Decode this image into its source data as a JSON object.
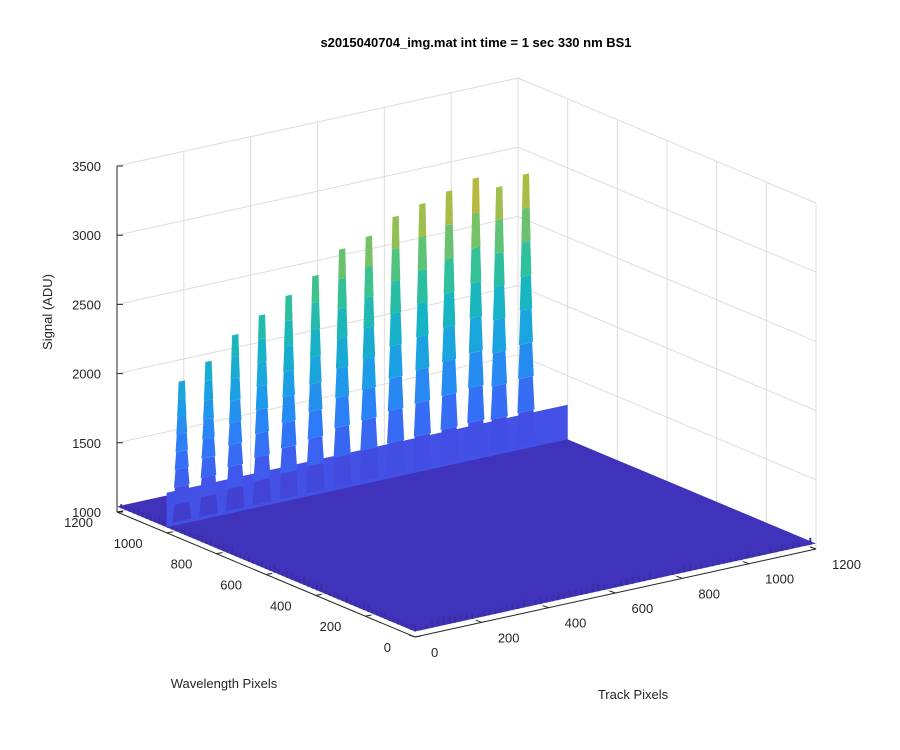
{
  "chart_data": {
    "type": "surface",
    "title": "s2015040704_img.mat int time = 1 sec  330 nm BS1",
    "xlabel": "Track Pixels",
    "ylabel": "Wavelength Pixels",
    "zlabel": "Signal (ADU)",
    "xlim": [
      0,
      1200
    ],
    "ylim": [
      0,
      1200
    ],
    "zlim": [
      1000,
      3500
    ],
    "x_ticks": [
      "0",
      "200",
      "400",
      "600",
      "800",
      "1000",
      "1200"
    ],
    "y_ticks": [
      "0",
      "200",
      "400",
      "600",
      "800",
      "1000",
      "1200"
    ],
    "z_ticks": [
      "1000",
      "1500",
      "2000",
      "2500",
      "3000",
      "3500"
    ],
    "grid": true,
    "colormap": "parula",
    "colormap_stops": [
      "#3e26a8",
      "#4353ea",
      "#2f7af9",
      "#1c9ee7",
      "#17b4c4",
      "#35c293",
      "#8cc158",
      "#d9b52a",
      "#f9d524"
    ],
    "background_level": 1040,
    "peaks": [
      {
        "x": 60,
        "y": 1080,
        "z": 2050
      },
      {
        "x": 140,
        "y": 1080,
        "z": 2150
      },
      {
        "x": 220,
        "y": 1080,
        "z": 2300
      },
      {
        "x": 300,
        "y": 1080,
        "z": 2400
      },
      {
        "x": 380,
        "y": 1080,
        "z": 2500
      },
      {
        "x": 460,
        "y": 1080,
        "z": 2600
      },
      {
        "x": 540,
        "y": 1080,
        "z": 2750
      },
      {
        "x": 620,
        "y": 1080,
        "z": 2800
      },
      {
        "x": 700,
        "y": 1080,
        "z": 2900
      },
      {
        "x": 780,
        "y": 1080,
        "z": 2950
      },
      {
        "x": 860,
        "y": 1080,
        "z": 3000
      },
      {
        "x": 940,
        "y": 1080,
        "z": 3050
      },
      {
        "x": 1010,
        "y": 1080,
        "z": 2950
      },
      {
        "x": 1090,
        "y": 1080,
        "z": 3000
      }
    ]
  }
}
